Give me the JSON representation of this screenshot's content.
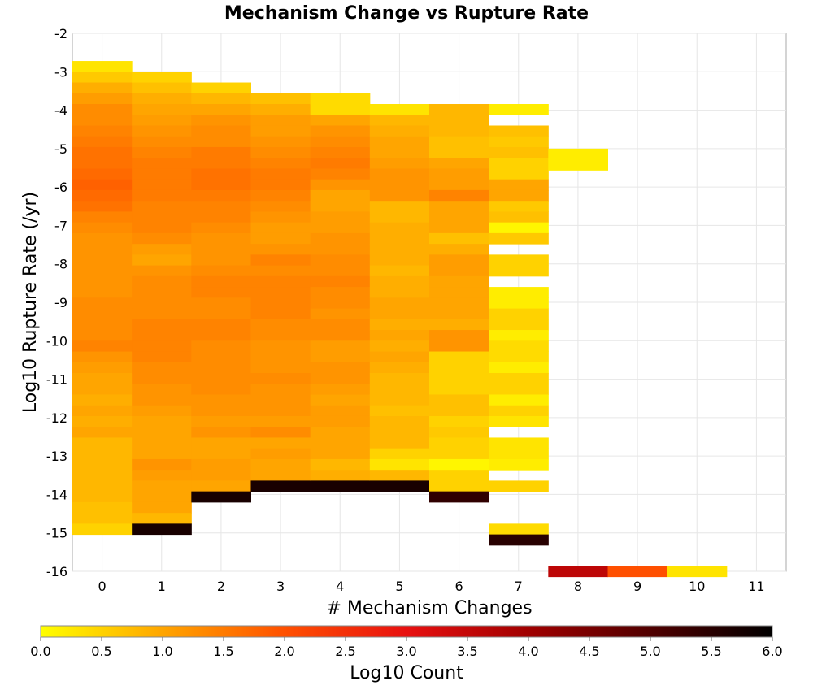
{
  "chart_data": {
    "type": "heatmap",
    "title": "Mechanism Change vs Rupture Rate",
    "xlabel": "# Mechanism Changes",
    "ylabel": "Log10 Rupture Rate (/yr)",
    "x_ticks": [
      0,
      1,
      2,
      3,
      4,
      5,
      6,
      7,
      8,
      9,
      10,
      11
    ],
    "y_ticks": [
      -2,
      -3,
      -4,
      -5,
      -6,
      -7,
      -8,
      -9,
      -10,
      -11,
      -12,
      -13,
      -14,
      -15,
      -16
    ],
    "xlim": [
      -0.5,
      11.5
    ],
    "ylim": [
      -16,
      -2
    ],
    "bin_height": 0.28,
    "grid": true,
    "colorbar": {
      "label": "Log10 Count",
      "min": 0.0,
      "max": 6.0,
      "ticks": [
        "0.0",
        "0.5",
        "1.0",
        "1.5",
        "2.0",
        "2.5",
        "3.0",
        "3.5",
        "4.0",
        "4.5",
        "5.0",
        "5.5",
        "6.0"
      ],
      "colors": [
        "#ffff00",
        "#ffa500",
        "#ff5000",
        "#e81010",
        "#a00000",
        "#500000",
        "#000000"
      ],
      "placement": "bottom"
    },
    "columns": [
      {
        "x": 0,
        "y_top": -2.72,
        "values": [
          0.3,
          0.6,
          0.9,
          1.1,
          1.3,
          1.3,
          1.4,
          1.5,
          1.6,
          1.6,
          1.7,
          1.8,
          1.7,
          1.6,
          1.4,
          1.3,
          1.2,
          1.2,
          1.2,
          1.2,
          1.2,
          1.2,
          1.3,
          1.3,
          1.3,
          1.3,
          1.4,
          1.2,
          1.1,
          1.0,
          1.0,
          0.9,
          1.0,
          0.9,
          1.0,
          0.8,
          0.8,
          0.8,
          0.8,
          0.8,
          0.8,
          0.7,
          0.7,
          0.5
        ]
      },
      {
        "x": 1,
        "y_top": -3.0,
        "values": [
          0.5,
          0.7,
          0.9,
          1.0,
          1.1,
          1.2,
          1.3,
          1.4,
          1.5,
          1.5,
          1.5,
          1.5,
          1.4,
          1.4,
          1.4,
          1.3,
          1.1,
          1.0,
          1.2,
          1.3,
          1.3,
          1.3,
          1.3,
          1.4,
          1.4,
          1.4,
          1.4,
          1.3,
          1.3,
          1.2,
          1.2,
          1.1,
          1.0,
          1.0,
          1.0,
          1.0,
          1.2,
          1.1,
          1.0,
          1.0,
          1.0,
          0.8,
          5.7
        ]
      },
      {
        "x": 2,
        "y_top": -3.28,
        "values": [
          0.5,
          0.8,
          1.0,
          1.2,
          1.3,
          1.3,
          1.5,
          1.5,
          1.6,
          1.6,
          1.5,
          1.4,
          1.4,
          1.3,
          1.2,
          1.2,
          1.2,
          1.3,
          1.4,
          1.4,
          1.3,
          1.3,
          1.4,
          1.4,
          1.3,
          1.3,
          1.3,
          1.3,
          1.3,
          1.2,
          1.2,
          1.1,
          1.2,
          1.0,
          1.0,
          1.1,
          1.1,
          1.0,
          5.7
        ]
      },
      {
        "x": 3,
        "y_top": -3.56,
        "values": [
          0.7,
          0.9,
          1.1,
          1.1,
          1.2,
          1.3,
          1.4,
          1.5,
          1.5,
          1.4,
          1.3,
          1.2,
          1.1,
          1.1,
          1.2,
          1.4,
          1.3,
          1.4,
          1.4,
          1.4,
          1.4,
          1.3,
          1.3,
          1.2,
          1.2,
          1.2,
          1.3,
          1.2,
          1.2,
          1.2,
          1.1,
          1.3,
          1.0,
          1.1,
          1.0,
          1.0,
          5.7
        ]
      },
      {
        "x": 4,
        "y_top": -3.56,
        "values": [
          0.4,
          0.4,
          1.0,
          1.2,
          1.3,
          1.4,
          1.5,
          1.4,
          1.2,
          1.0,
          1.0,
          1.1,
          1.1,
          1.2,
          1.2,
          1.3,
          1.3,
          1.4,
          1.3,
          1.3,
          1.2,
          1.3,
          1.3,
          1.1,
          1.1,
          1.2,
          1.2,
          1.1,
          1.0,
          1.1,
          1.1,
          1.0,
          1.0,
          1.0,
          0.8,
          0.9,
          5.7
        ]
      },
      {
        "x": 5,
        "y_top": -3.84,
        "values": [
          0.3,
          0.8,
          0.9,
          1.0,
          1.0,
          1.1,
          1.2,
          1.2,
          1.2,
          0.8,
          0.8,
          0.9,
          0.9,
          0.9,
          0.9,
          0.8,
          0.9,
          0.9,
          1.0,
          1.0,
          0.9,
          1.0,
          0.9,
          1.0,
          0.9,
          0.8,
          0.8,
          0.8,
          0.7,
          0.8,
          0.8,
          0.8,
          0.5,
          0.3,
          0.8,
          5.7
        ]
      },
      {
        "x": 6,
        "y_top": -3.84,
        "values": [
          0.8,
          0.8,
          0.8,
          0.7,
          0.7,
          1.0,
          1.1,
          1.1,
          1.4,
          1.0,
          1.0,
          1.0,
          0.7,
          0.9,
          1.1,
          1.1,
          1.0,
          1.0,
          1.0,
          1.0,
          0.9,
          1.2,
          1.2,
          0.5,
          0.5,
          0.5,
          0.5,
          0.7,
          0.7,
          0.5,
          0.6,
          0.5,
          0.5,
          0.1,
          0.5,
          0.5,
          5.4
        ]
      },
      {
        "x": 7,
        "y_top": -3.84,
        "values": [
          0.2,
          null,
          0.7,
          0.6,
          0.7,
          0.5,
          0.5,
          1.0,
          1.0,
          0.6,
          0.7,
          0.1,
          0.6,
          null,
          0.5,
          0.5,
          null,
          0.2,
          0.2,
          0.5,
          0.5,
          0.2,
          0.4,
          0.4,
          0.2,
          0.5,
          0.5,
          0.2,
          0.5,
          0.3,
          null,
          0.3,
          0.3,
          0.2,
          null,
          0.5,
          null,
          null,
          null,
          0.4,
          5.5
        ]
      },
      {
        "x": 8,
        "y_top": -5.0,
        "values": [
          0.2,
          0.2
        ]
      },
      {
        "x": 8,
        "y_top": -15.86,
        "values": [
          3.6
        ]
      },
      {
        "x": 9,
        "y_top": -15.86,
        "values": [
          2.0
        ]
      },
      {
        "x": 10,
        "y_top": -15.86,
        "values": [
          0.3
        ]
      }
    ]
  }
}
